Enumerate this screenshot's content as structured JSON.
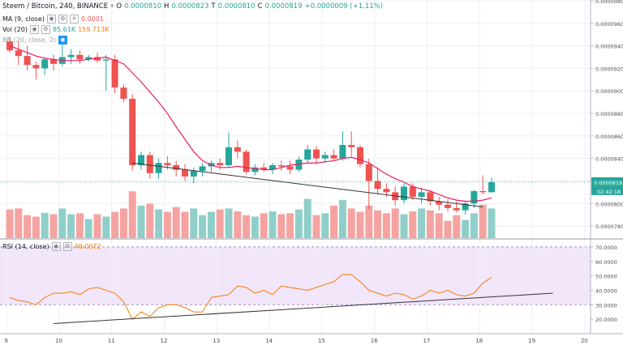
{
  "header": {
    "symbol": "Steem / Bitcoin, 240, BINANCE",
    "open_label": "O",
    "open": "0.0000810",
    "high_label": "H",
    "high": "0.0000823",
    "low_label": "T",
    "low": "0.0000810",
    "close_label": "C",
    "close": "0.0000819",
    "change": "+0.0000009 (+1.11%)"
  },
  "indicators": {
    "ma": {
      "label": "MA (9, close)",
      "value": "0.0001",
      "color": "#e91e63"
    },
    "vol": {
      "label": "Vol (20)",
      "value1": "85.61K",
      "value2": "159.713K"
    },
    "bb": {
      "label": "BB (20, close, 2)"
    },
    "rsi": {
      "label": "RSI (14, close)",
      "value": "49.0072",
      "color": "#f57c00"
    }
  },
  "colors": {
    "up": "#26a69a",
    "down": "#ef5350",
    "up_vol": "#90cfc9",
    "down_vol": "#f5a3a1",
    "ma": "#e91e63",
    "rsi": "#f57c00",
    "rsi_band": "#f2e6fb",
    "trend": "#333333",
    "grid": "#edf0f3"
  },
  "chart_data": [
    {
      "type": "candlestick",
      "title": "Steem / Bitcoin, 240, BINANCE",
      "ylim": [
        7.7e-05,
        9.8e-05
      ],
      "y_ticks": [
        "0.0000980",
        "0.0000960",
        "0.0000940",
        "0.0000920",
        "0.0000900",
        "0.0000880",
        "0.0000860",
        "0.0000840",
        "0.0000820",
        "0.0000800",
        "0.0000780"
      ],
      "x_ticks": [
        "9",
        "10",
        "11",
        "12",
        "13",
        "14",
        "15",
        "16",
        "17",
        "18",
        "19",
        "20"
      ],
      "last_price_label": "0.0000819",
      "countdown_label": "02:42:18",
      "candles": [
        [
          9.44e-05,
          9.48e-05,
          9.34e-05,
          9.36e-05
        ],
        [
          9.36e-05,
          9.44e-05,
          9.23e-05,
          9.31e-05
        ],
        [
          9.31e-05,
          9.4e-05,
          9.18e-05,
          9.23e-05
        ],
        [
          9.23e-05,
          9.26e-05,
          9.1e-05,
          9.2e-05
        ],
        [
          9.2e-05,
          9.3e-05,
          9.14e-05,
          9.28e-05
        ],
        [
          9.28e-05,
          9.32e-05,
          9.18e-05,
          9.24e-05
        ],
        [
          9.24e-05,
          9.48e-05,
          9.22e-05,
          9.3e-05
        ],
        [
          9.3e-05,
          9.37e-05,
          9.24e-05,
          9.32e-05
        ],
        [
          9.32e-05,
          9.36e-05,
          9.24e-05,
          9.28e-05
        ],
        [
          9.28e-05,
          9.32e-05,
          9.26e-05,
          9.3e-05
        ],
        [
          9.3e-05,
          9.34e-05,
          9.25e-05,
          9.27e-05
        ],
        [
          9.27e-05,
          9.32e-05,
          9e-05,
          9.28e-05
        ],
        [
          9.28e-05,
          9.32e-05,
          8.98e-05,
          9.03e-05
        ],
        [
          9.03e-05,
          9.06e-05,
          8.9e-05,
          8.93e-05
        ],
        [
          8.93e-05,
          8.97e-05,
          8.29e-05,
          8.34e-05
        ],
        [
          8.34e-05,
          8.46e-05,
          8.3e-05,
          8.43e-05
        ],
        [
          8.43e-05,
          8.46e-05,
          8.22e-05,
          8.27e-05
        ],
        [
          8.27e-05,
          8.4e-05,
          8.22e-05,
          8.36e-05
        ],
        [
          8.36e-05,
          8.42e-05,
          8.3e-05,
          8.34e-05
        ],
        [
          8.34e-05,
          8.38e-05,
          8.24e-05,
          8.3e-05
        ],
        [
          8.3e-05,
          8.35e-05,
          8.2e-05,
          8.24e-05
        ],
        [
          8.24e-05,
          8.32e-05,
          8.18e-05,
          8.29e-05
        ],
        [
          8.29e-05,
          8.36e-05,
          8.24e-05,
          8.33e-05
        ],
        [
          8.33e-05,
          8.38e-05,
          8.28e-05,
          8.36e-05
        ],
        [
          8.36e-05,
          8.4e-05,
          8.3e-05,
          8.34e-05
        ],
        [
          8.34e-05,
          8.63e-05,
          8.32e-05,
          8.5e-05
        ],
        [
          8.5e-05,
          8.56e-05,
          8.4e-05,
          8.46e-05
        ],
        [
          8.46e-05,
          8.48e-05,
          8.26e-05,
          8.28e-05
        ],
        [
          8.28e-05,
          8.35e-05,
          8.25e-05,
          8.32e-05
        ],
        [
          8.32e-05,
          8.36e-05,
          8.28e-05,
          8.3e-05
        ],
        [
          8.3e-05,
          8.36e-05,
          8.26e-05,
          8.34e-05
        ],
        [
          8.34e-05,
          8.38e-05,
          8.29e-05,
          8.33e-05
        ],
        [
          8.33e-05,
          8.38e-05,
          8.26e-05,
          8.3e-05
        ],
        [
          8.3e-05,
          8.42e-05,
          8.28e-05,
          8.39e-05
        ],
        [
          8.39e-05,
          8.52e-05,
          8.36e-05,
          8.48e-05
        ],
        [
          8.48e-05,
          8.51e-05,
          8.35e-05,
          8.4e-05
        ],
        [
          8.4e-05,
          8.46e-05,
          8.36e-05,
          8.43e-05
        ],
        [
          8.43e-05,
          8.48e-05,
          8.38e-05,
          8.4e-05
        ],
        [
          8.4e-05,
          8.64e-05,
          8.38e-05,
          8.52e-05
        ],
        [
          8.52e-05,
          8.64e-05,
          8.42e-05,
          8.5e-05
        ],
        [
          8.5e-05,
          8.52e-05,
          8.32e-05,
          8.35e-05
        ],
        [
          8.35e-05,
          8.4e-05,
          7.95e-05,
          8.2e-05
        ],
        [
          8.2e-05,
          8.32e-05,
          8.08e-05,
          8.13e-05
        ],
        [
          8.13e-05,
          8.18e-05,
          8.06e-05,
          8.1e-05
        ],
        [
          8.1e-05,
          8.15e-05,
          7.98e-05,
          8.03e-05
        ],
        [
          8.03e-05,
          8.18e-05,
          8e-05,
          8.15e-05
        ],
        [
          8.15e-05,
          8.18e-05,
          8.03e-05,
          8.06e-05
        ],
        [
          8.06e-05,
          8.14e-05,
          8e-05,
          8.1e-05
        ],
        [
          8.1e-05,
          8.12e-05,
          7.98e-05,
          8.02e-05
        ],
        [
          8.02e-05,
          8.06e-05,
          7.94e-05,
          7.99e-05
        ],
        [
          7.99e-05,
          8.04e-05,
          7.93e-05,
          7.96e-05
        ],
        [
          7.96e-05,
          8.02e-05,
          7.92e-05,
          7.94e-05
        ],
        [
          7.94e-05,
          8.02e-05,
          7.9e-05,
          8e-05
        ],
        [
          8e-05,
          8.12e-05,
          7.96e-05,
          8.11e-05
        ],
        [
          8.11e-05,
          8.25e-05,
          8.08e-05,
          8.1e-05
        ],
        [
          8.1e-05,
          8.23e-05,
          8.1e-05,
          8.19e-05
        ]
      ],
      "ma9": [
        9.4e-05,
        9.37e-05,
        9.34e-05,
        9.31e-05,
        9.29e-05,
        9.28e-05,
        9.27e-05,
        9.27e-05,
        9.27e-05,
        9.28e-05,
        9.29e-05,
        9.3e-05,
        9.27e-05,
        9.24e-05,
        9.16e-05,
        9.08e-05,
        8.99e-05,
        8.9e-05,
        8.8e-05,
        8.68e-05,
        8.57e-05,
        8.46e-05,
        8.38e-05,
        8.34e-05,
        8.32e-05,
        8.32e-05,
        8.33e-05,
        8.32e-05,
        8.31e-05,
        8.3e-05,
        8.3e-05,
        8.32e-05,
        8.34e-05,
        8.35e-05,
        8.36e-05,
        8.36e-05,
        8.37e-05,
        8.38e-05,
        8.4e-05,
        8.41e-05,
        8.39e-05,
        8.36e-05,
        8.31e-05,
        8.26e-05,
        8.22e-05,
        8.19e-05,
        8.15e-05,
        8.13e-05,
        8.11e-05,
        8.08e-05,
        8.05e-05,
        8.03e-05,
        8.02e-05,
        8.02e-05,
        8.03e-05,
        8.05e-05
      ],
      "volume": [
        60,
        62,
        48,
        45,
        53,
        50,
        62,
        50,
        52,
        40,
        50,
        45,
        55,
        62,
        98,
        68,
        72,
        60,
        55,
        65,
        55,
        62,
        48,
        55,
        60,
        62,
        56,
        48,
        45,
        52,
        56,
        50,
        52,
        60,
        82,
        48,
        52,
        68,
        80,
        62,
        55,
        68,
        58,
        52,
        62,
        50,
        56,
        62,
        58,
        52,
        36,
        48,
        38,
        52,
        70,
        62
      ],
      "trendline": [
        [
          14,
          8.36e-05
        ],
        [
          54,
          7.97e-05
        ]
      ]
    },
    {
      "type": "line",
      "title": "RSI (14, close)",
      "ylim": [
        10,
        75
      ],
      "y_ticks": [
        "70.0000",
        "60.0000",
        "50.0000",
        "40.0000",
        "30.0000",
        "20.0000"
      ],
      "band": [
        30,
        70
      ],
      "rsi": [
        35,
        33,
        32,
        30,
        35,
        38,
        38,
        39,
        37,
        41,
        42,
        40,
        38,
        32,
        20,
        25,
        22,
        28,
        30,
        30,
        28,
        25,
        25,
        35,
        36,
        37,
        43,
        42,
        38,
        40,
        37,
        43,
        42,
        41,
        40,
        42,
        44,
        46,
        51,
        51,
        46,
        40,
        38,
        36,
        38,
        37,
        34,
        36,
        40,
        38,
        40,
        37,
        36,
        38,
        45,
        49
      ],
      "trendline": [
        [
          5,
          17
        ],
        [
          62,
          38
        ]
      ]
    }
  ]
}
